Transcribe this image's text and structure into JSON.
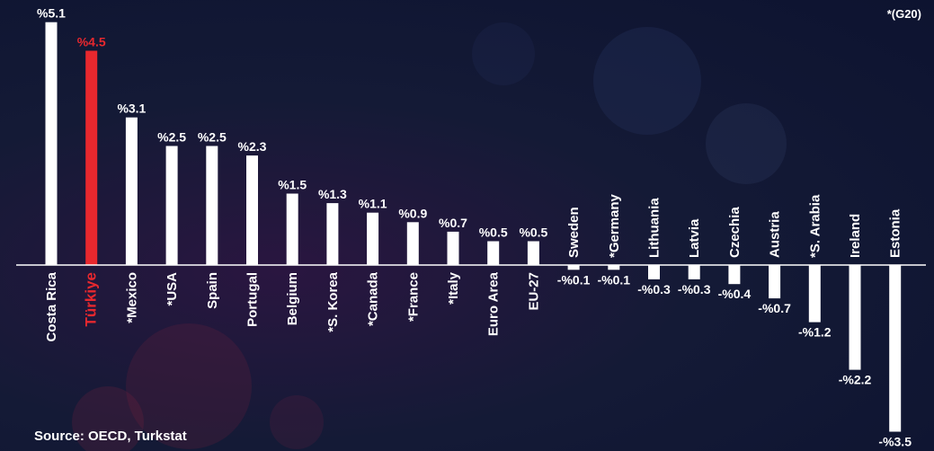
{
  "note": "*(G20)",
  "source": "Source: OECD, Turkstat",
  "colors": {
    "bar": "#ffffff",
    "highlight": "#e8282e",
    "axis": "#ffffff"
  },
  "chart_data": {
    "type": "bar",
    "categories": [
      "Costa Rica",
      "Türkiye",
      "*Mexico",
      "*USA",
      "Spain",
      "Portugal",
      "Belgium",
      "*S. Korea",
      "*Canada",
      "*France",
      "*Italy",
      "Euro Area",
      "EU-27",
      "Sweden",
      "*Germany",
      "Lithuania",
      "Latvia",
      "Czechia",
      "Austria",
      "*S. Arabia",
      "Ireland",
      "Estonia"
    ],
    "values": [
      5.1,
      4.5,
      3.1,
      2.5,
      2.5,
      2.3,
      1.5,
      1.3,
      1.1,
      0.9,
      0.7,
      0.5,
      0.5,
      -0.1,
      -0.1,
      -0.3,
      -0.3,
      -0.4,
      -0.7,
      -1.2,
      -2.2,
      -3.5
    ],
    "value_labels": [
      "%5.1",
      "%4.5",
      "%3.1",
      "%2.5",
      "%2.5",
      "%2.3",
      "%1.5",
      "%1.3",
      "%1.1",
      "%0.9",
      "%0.7",
      "%0.5",
      "%0.5",
      "-%0.1",
      "-%0.1",
      "-%0.3",
      "-%0.3",
      "-%0.4",
      "-%0.7",
      "-%1.2",
      "-%2.2",
      "-%3.5"
    ],
    "highlight": "Türkiye",
    "grid": false,
    "legend": "none"
  }
}
